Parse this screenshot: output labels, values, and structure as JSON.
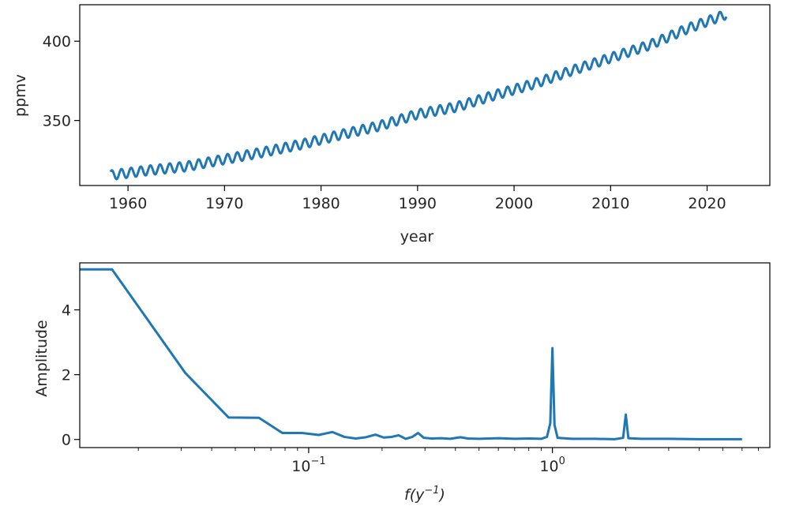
{
  "colors": {
    "line": "#1f77b4",
    "axes": "#000000",
    "text": "#262626",
    "background": "#ffffff"
  },
  "chart_data": [
    {
      "type": "line",
      "title": "",
      "xlabel": "year",
      "ylabel": "ppmv",
      "xlim": [
        1955,
        2026.5
      ],
      "ylim": [
        309,
        423
      ],
      "xscale": "linear",
      "grid": false,
      "xticks": [
        1960,
        1970,
        1980,
        1990,
        2000,
        2010,
        2020
      ],
      "xtick_labels": [
        "1960",
        "1970",
        "1980",
        "1990",
        "2000",
        "2010",
        "2020"
      ],
      "yticks": [
        350,
        400
      ],
      "ytick_labels": [
        "350",
        "400"
      ],
      "series": [
        {
          "seasonal_amplitude": 3,
          "x": [
            1958.2,
            1962,
            1966,
            1970,
            1974,
            1978,
            1982,
            1986,
            1990,
            1994,
            1998,
            2002,
            2006,
            2010,
            2014,
            2018,
            2022
          ],
          "y": [
            315.5,
            318.5,
            321,
            325.5,
            330,
            335,
            341,
            346.5,
            354,
            358.5,
            366,
            373,
            381.5,
            389.5,
            397.5,
            408,
            417
          ]
        }
      ]
    },
    {
      "type": "line",
      "title": "",
      "xlabel": "f(y⁻¹)",
      "xlabel_main": "f(y",
      "xlabel_sup": "−1",
      "xlabel_end": ")",
      "ylabel": "Amplitude",
      "xlim": [
        0.0115,
        7.8
      ],
      "ylim": [
        -0.25,
        5.45
      ],
      "xscale": "log",
      "grid": false,
      "xticks": [
        0.1,
        1
      ],
      "xtick_labels": [
        {
          "base": "10",
          "exp": "−1"
        },
        {
          "base": "10",
          "exp": "0"
        }
      ],
      "yticks": [
        0,
        2,
        4
      ],
      "ytick_labels": [
        "0",
        "2",
        "4"
      ],
      "series": [
        {
          "x": [
            0.0115,
            0.0156,
            0.0312,
            0.0469,
            0.0625,
            0.078,
            0.094,
            0.11,
            0.125,
            0.14,
            0.156,
            0.172,
            0.188,
            0.203,
            0.219,
            0.234,
            0.25,
            0.266,
            0.281,
            0.297,
            0.32,
            0.35,
            0.38,
            0.42,
            0.45,
            0.5,
            0.6,
            0.7,
            0.8,
            0.9,
            0.95,
            0.98,
            1.0,
            1.02,
            1.05,
            1.2,
            1.5,
            1.8,
            1.95,
            2.0,
            2.05,
            2.3,
            3.0,
            4.0,
            5.0,
            6.0
          ],
          "y": [
            5.25,
            5.25,
            2.05,
            0.68,
            0.67,
            0.2,
            0.2,
            0.14,
            0.23,
            0.08,
            0.03,
            0.07,
            0.15,
            0.06,
            0.08,
            0.13,
            0.02,
            0.08,
            0.2,
            0.05,
            0.03,
            0.04,
            0.02,
            0.07,
            0.03,
            0.02,
            0.04,
            0.02,
            0.03,
            0.02,
            0.08,
            0.5,
            2.82,
            0.45,
            0.05,
            0.02,
            0.02,
            0.01,
            0.05,
            0.77,
            0.04,
            0.02,
            0.02,
            0.01,
            0.01,
            0.01
          ]
        }
      ]
    }
  ]
}
